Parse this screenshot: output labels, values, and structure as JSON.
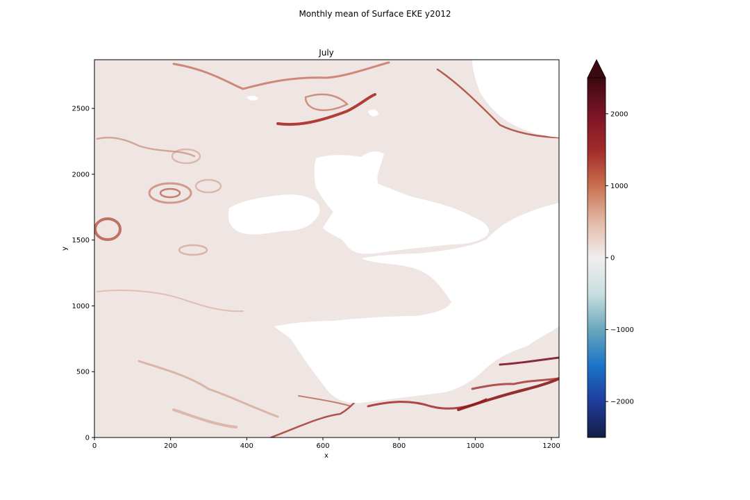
{
  "figure": {
    "suptitle": "Monthly mean of Surface EKE y2012"
  },
  "chart_data": {
    "type": "heatmap",
    "title": "July",
    "xlabel": "x",
    "ylabel": "y",
    "xlim": [
      0,
      1220
    ],
    "ylim": [
      0,
      2870
    ],
    "x_ticks": [
      0,
      200,
      400,
      600,
      800,
      1000,
      1200
    ],
    "y_ticks": [
      0,
      500,
      1000,
      1500,
      2000,
      2500
    ],
    "colorbar": {
      "vmin": -2500,
      "vmax": 2500,
      "ticks": [
        -2000,
        -1000,
        0,
        1000,
        2000
      ],
      "tick_labels": [
        "−2000",
        "−1000",
        "0",
        "1000",
        "2000"
      ],
      "extend": "max",
      "cmap_stops": [
        "#151d44",
        "#1f3c9c",
        "#1a74c8",
        "#6aa7bc",
        "#c9dfe0",
        "#f1eeed",
        "#e2b9a6",
        "#c9704f",
        "#a12a2a",
        "#7a1425",
        "#3c0911"
      ]
    },
    "background_color": "#efe6e4",
    "land_color": "#ffffff",
    "highlight_color": "#8b1a1a"
  }
}
